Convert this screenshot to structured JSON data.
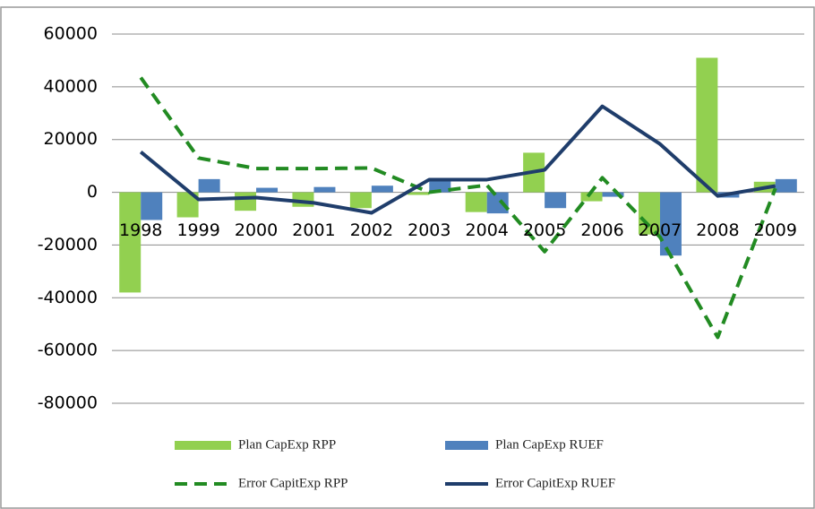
{
  "chart_data": {
    "type": "bar",
    "categories": [
      "1998",
      "1999",
      "2000",
      "2001",
      "2002",
      "2003",
      "2004",
      "2005",
      "2006",
      "2007",
      "2008",
      "2009"
    ],
    "series": [
      {
        "name": "Plan CapExp RPP",
        "type": "bar",
        "color": "#92d050",
        "values": [
          -38000,
          -9500,
          -7000,
          -5500,
          -6000,
          -1000,
          -7500,
          15000,
          -3400,
          -16000,
          51000,
          4000
        ]
      },
      {
        "name": "Plan CapExp RUEF",
        "type": "bar",
        "color": "#4f81bd",
        "values": [
          -10500,
          5000,
          1700,
          2000,
          2500,
          5000,
          -8000,
          -6000,
          -1700,
          -24000,
          -2000,
          5000
        ]
      },
      {
        "name": "Error CapitExp RPP",
        "type": "line",
        "dashed": true,
        "color": "#228b22",
        "values": [
          43500,
          13000,
          9000,
          9000,
          9200,
          0,
          2700,
          -22500,
          5500,
          -17000,
          -55000,
          1500
        ]
      },
      {
        "name": "Error CapitExp RUEF",
        "type": "line",
        "dashed": false,
        "color": "#1f3d6b",
        "values": [
          15300,
          -2700,
          -2000,
          -4000,
          -7800,
          4800,
          4800,
          8500,
          32600,
          18300,
          -1400,
          2400
        ]
      }
    ],
    "ylim": [
      -80000,
      60000
    ],
    "yticks": [
      -80000,
      -60000,
      -40000,
      -20000,
      0,
      20000,
      40000,
      60000
    ],
    "grid": true,
    "legend": "bottom"
  }
}
